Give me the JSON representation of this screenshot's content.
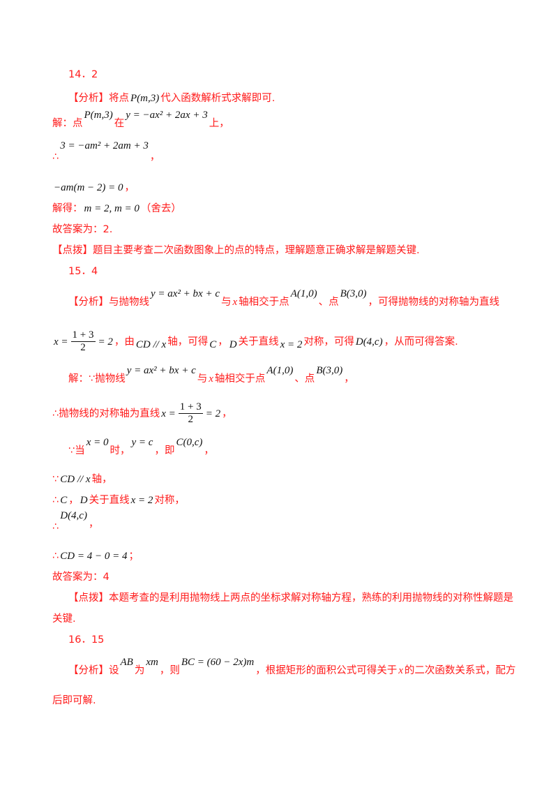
{
  "L": [
    [
      "14．2"
    ],
    [
      "【分析】将点",
      "P(m,3)",
      "代入函数解析式求解即可."
    ],
    [
      "解：点",
      "P(m,3)",
      "在",
      "y = −ax² + 2ax + 3",
      "上，"
    ],
    [
      "∴",
      "3 = −am² + 2am + 3",
      "，"
    ],
    [
      "−am(m − 2) = 0",
      "，"
    ],
    [
      "解得：",
      "m = 2, m = 0",
      "（舍去）"
    ],
    [
      "故答案为：2."
    ],
    [
      "【点拨】题目主要考查二次函数图象上的点的特点，理解题意正确求解是解题关键."
    ],
    [
      "15．4"
    ],
    [
      "【分析】与抛物线",
      "y = ax² + bx + c",
      "与",
      "x",
      "轴相交于点",
      "A(1,0)",
      "、点",
      "B(3,0)",
      "，可得抛物线的对称轴为直线"
    ],
    [
      "x =",
      "1 + 3",
      "2",
      "= 2",
      "，由",
      "CD // x",
      "轴，可得",
      "C",
      "，",
      "D",
      "关于直线",
      "x = 2",
      "对称，可得",
      "D(4,c)",
      "，从而可得答案."
    ],
    [
      "解：∵抛物线",
      "y = ax² + bx + c",
      "与",
      "x",
      "轴相交于点",
      "A(1,0)",
      "、点",
      "B(3,0)",
      "，"
    ],
    [
      "∴抛物线的对称轴为直线",
      "x =",
      "1 + 3",
      "2",
      "= 2",
      "，"
    ],
    [
      "∵当",
      "x = 0",
      "时，",
      "y = c",
      "，即",
      "C(0,c)",
      "，"
    ],
    [
      "∵",
      "CD // x",
      "轴，"
    ],
    [
      "∴",
      "C",
      "，",
      "D",
      "关于直线",
      "x = 2",
      "对称，"
    ],
    [
      "∴",
      "D(4,c)",
      "，"
    ],
    [
      "∴",
      "CD = 4 − 0 = 4",
      "；"
    ],
    [
      "故答案为：4"
    ],
    [
      "【点拨】本题考查的是利用抛物线上两点的坐标求解对称轴方程，熟练的利用抛物线的对称性解题是"
    ],
    [
      "关键."
    ],
    [
      "16．15"
    ],
    [
      "【分析】设",
      "AB",
      "为",
      "xm",
      "，则",
      "BC = (60 − 2x)m",
      "，根据矩形的面积公式可得关于",
      "x",
      "的二次函数关系式，配方"
    ],
    [
      "后即可解."
    ]
  ],
  "colors": {
    "text": "#ff1a1a",
    "math": "#111111"
  }
}
